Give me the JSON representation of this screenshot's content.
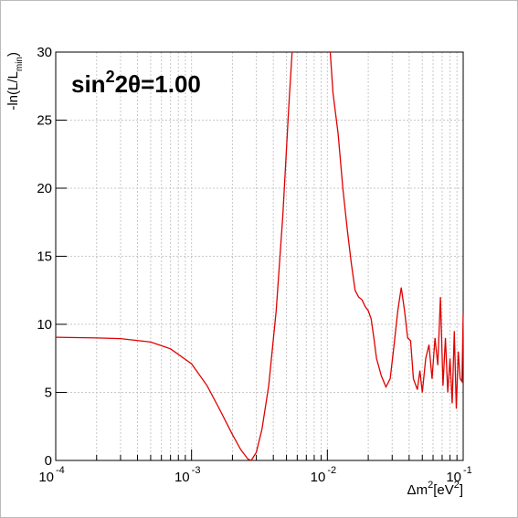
{
  "chart_data": {
    "type": "line",
    "annotation": [
      "sin",
      "2",
      "2θ=1.00"
    ],
    "xlabel": [
      "Δm",
      "2",
      "[eV",
      "2",
      "]"
    ],
    "ylabel": [
      "-ln(L/L",
      "min",
      ")"
    ],
    "xlog": true,
    "grid": true,
    "xlim": [
      0.0001,
      0.1
    ],
    "ylim": [
      0,
      30
    ],
    "xticks": [
      {
        "value": 0.0001,
        "label": "10",
        "exponent": "-4"
      },
      {
        "value": 0.001,
        "label": "10",
        "exponent": "-3"
      },
      {
        "value": 0.01,
        "label": "10",
        "exponent": "-2"
      },
      {
        "value": 0.1,
        "label": "10",
        "exponent": "-1"
      }
    ],
    "xminorticks": [
      0.0002,
      0.0003,
      0.0004,
      0.0005,
      0.0006,
      0.0007,
      0.0008,
      0.0009,
      0.002,
      0.003,
      0.004,
      0.005,
      0.006,
      0.007,
      0.008,
      0.009,
      0.02,
      0.03,
      0.04,
      0.05,
      0.06,
      0.07,
      0.08,
      0.09
    ],
    "yticks": [
      0,
      5,
      10,
      15,
      20,
      25,
      30
    ],
    "x": [
      0.0001,
      0.0002,
      0.0003,
      0.0005,
      0.0007,
      0.001,
      0.0013,
      0.0016,
      0.002,
      0.0023,
      0.0026,
      0.00275,
      0.003,
      0.0033,
      0.0037,
      0.0042,
      0.0047,
      0.0052,
      0.0055,
      0.0075,
      0.0105,
      0.011,
      0.012,
      0.013,
      0.014,
      0.015,
      0.016,
      0.017,
      0.018,
      0.019,
      0.02,
      0.021,
      0.022,
      0.023,
      0.025,
      0.027,
      0.029,
      0.031,
      0.033,
      0.035,
      0.037,
      0.039,
      0.041,
      0.043,
      0.046,
      0.048,
      0.05,
      0.053,
      0.056,
      0.059,
      0.062,
      0.065,
      0.068,
      0.071,
      0.074,
      0.077,
      0.08,
      0.083,
      0.086,
      0.089,
      0.092,
      0.095,
      0.098,
      0.1
    ],
    "series": [
      {
        "color": "#e00000",
        "values": [
          9.05,
          9.0,
          8.95,
          8.7,
          8.2,
          7.1,
          5.5,
          3.8,
          1.9,
          0.8,
          0.1,
          0,
          0.6,
          2.3,
          5.5,
          11,
          18,
          26,
          30,
          null,
          30,
          27,
          24,
          20,
          17,
          14.5,
          12.5,
          12,
          11.8,
          11.3,
          11,
          10.4,
          9,
          7.5,
          6.2,
          5.4,
          6,
          8.5,
          11,
          12.7,
          11,
          9,
          8.8,
          6,
          5.2,
          6.6,
          5,
          7.5,
          8.5,
          6,
          9,
          7,
          12,
          5.5,
          9,
          5,
          7.5,
          4.2,
          9.5,
          3.8,
          8,
          6,
          5.8,
          10.8
        ]
      }
    ]
  }
}
